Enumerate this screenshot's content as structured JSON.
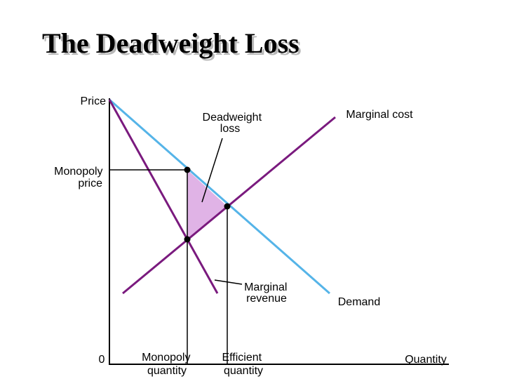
{
  "title": "The Deadweight Loss",
  "labels": {
    "price_axis": "Price",
    "quantity_axis": "Quantity",
    "origin": "0",
    "monopoly_price": [
      "Monopoly",
      "price"
    ],
    "deadweight_loss": [
      "Deadweight",
      "loss"
    ],
    "marginal_cost": "Marginal cost",
    "marginal_revenue": [
      "Marginal",
      "revenue"
    ],
    "demand": "Demand",
    "monopoly_quantity": [
      "Monopoly",
      "quantity"
    ],
    "efficient_quantity": [
      "Efficient",
      "quantity"
    ]
  },
  "colors": {
    "demand": "#55b4e8",
    "marginal_cost": "#7a1a7e",
    "marginal_revenue": "#7a1a7e",
    "deadweight_fill": "#e0b3e6",
    "axes": "#000000"
  }
}
